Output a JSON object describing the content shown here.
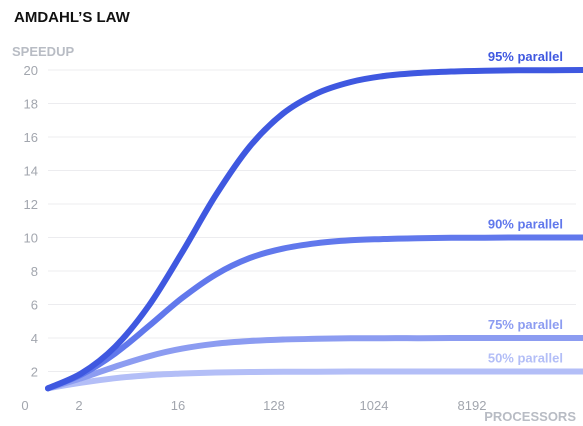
{
  "chart_data": {
    "type": "line",
    "title": "AMDAHL’S LAW",
    "ylabel": "SPEEDUP",
    "xlabel": "PROCESSORS",
    "x_tick_labels": [
      "0",
      "2",
      "16",
      "128",
      "1024",
      "8192"
    ],
    "y_ticks": [
      2,
      4,
      6,
      8,
      10,
      12,
      14,
      16,
      18,
      20
    ],
    "ylim": [
      0,
      20
    ],
    "x_scale": "log2",
    "x": [
      1,
      2,
      4,
      8,
      16,
      32,
      64,
      128,
      256,
      512,
      1024,
      2048,
      4096,
      8192,
      16384,
      32768,
      65536
    ],
    "grid": true,
    "series": [
      {
        "name": "95% parallel",
        "color": "#3f58e0",
        "values": [
          1,
          1.9,
          3.48,
          5.93,
          9.14,
          12.55,
          15.42,
          17.41,
          18.6,
          19.28,
          19.64,
          19.82,
          19.91,
          19.96,
          19.98,
          19.99,
          20
        ]
      },
      {
        "name": "90% parallel",
        "color": "#6178ec",
        "values": [
          1,
          1.82,
          3.08,
          4.71,
          6.4,
          7.8,
          8.77,
          9.34,
          9.66,
          9.83,
          9.91,
          9.96,
          9.98,
          9.99,
          10,
          10,
          10
        ]
      },
      {
        "name": "75% parallel",
        "color": "#8c9cf1",
        "values": [
          1,
          1.6,
          2.29,
          2.91,
          3.37,
          3.66,
          3.82,
          3.91,
          3.95,
          3.98,
          3.99,
          3.99,
          4,
          4,
          4,
          4,
          4
        ]
      },
      {
        "name": "50% parallel",
        "color": "#b3bef7",
        "values": [
          1,
          1.33,
          1.6,
          1.78,
          1.88,
          1.94,
          1.97,
          1.98,
          1.99,
          2,
          2,
          2,
          2,
          2,
          2,
          2,
          2
        ]
      }
    ]
  }
}
